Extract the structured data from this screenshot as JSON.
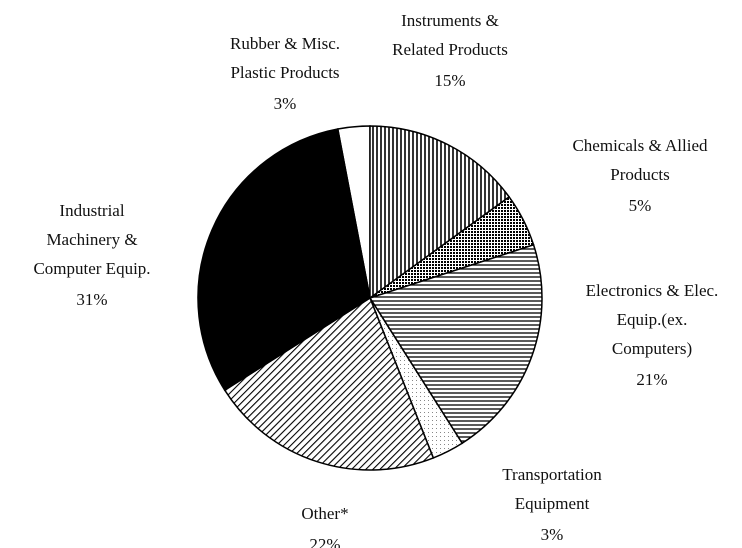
{
  "chart_data": {
    "type": "pie",
    "categories": [
      [
        "Rubber & Misc.",
        "Plastic Products"
      ],
      [
        "Instruments &",
        "Related Products"
      ],
      [
        "Chemicals & Allied",
        "Products"
      ],
      [
        "Electronics & Elec.",
        "Equip.(ex.",
        "Computers)"
      ],
      [
        "Transportation",
        "Equipment"
      ],
      [
        "Other*"
      ],
      [
        "Industrial",
        "Machinery &",
        "Computer Equip."
      ]
    ],
    "values": [
      3,
      15,
      5,
      21,
      3,
      22,
      31
    ],
    "value_labels": [
      "3%",
      "15%",
      "5%",
      "21%",
      "3%",
      "22%",
      "31%"
    ],
    "fills": [
      "white",
      "vertical-lines",
      "dots",
      "horizontal-lines",
      "light-dots",
      "diagonal-lines",
      "black"
    ]
  }
}
